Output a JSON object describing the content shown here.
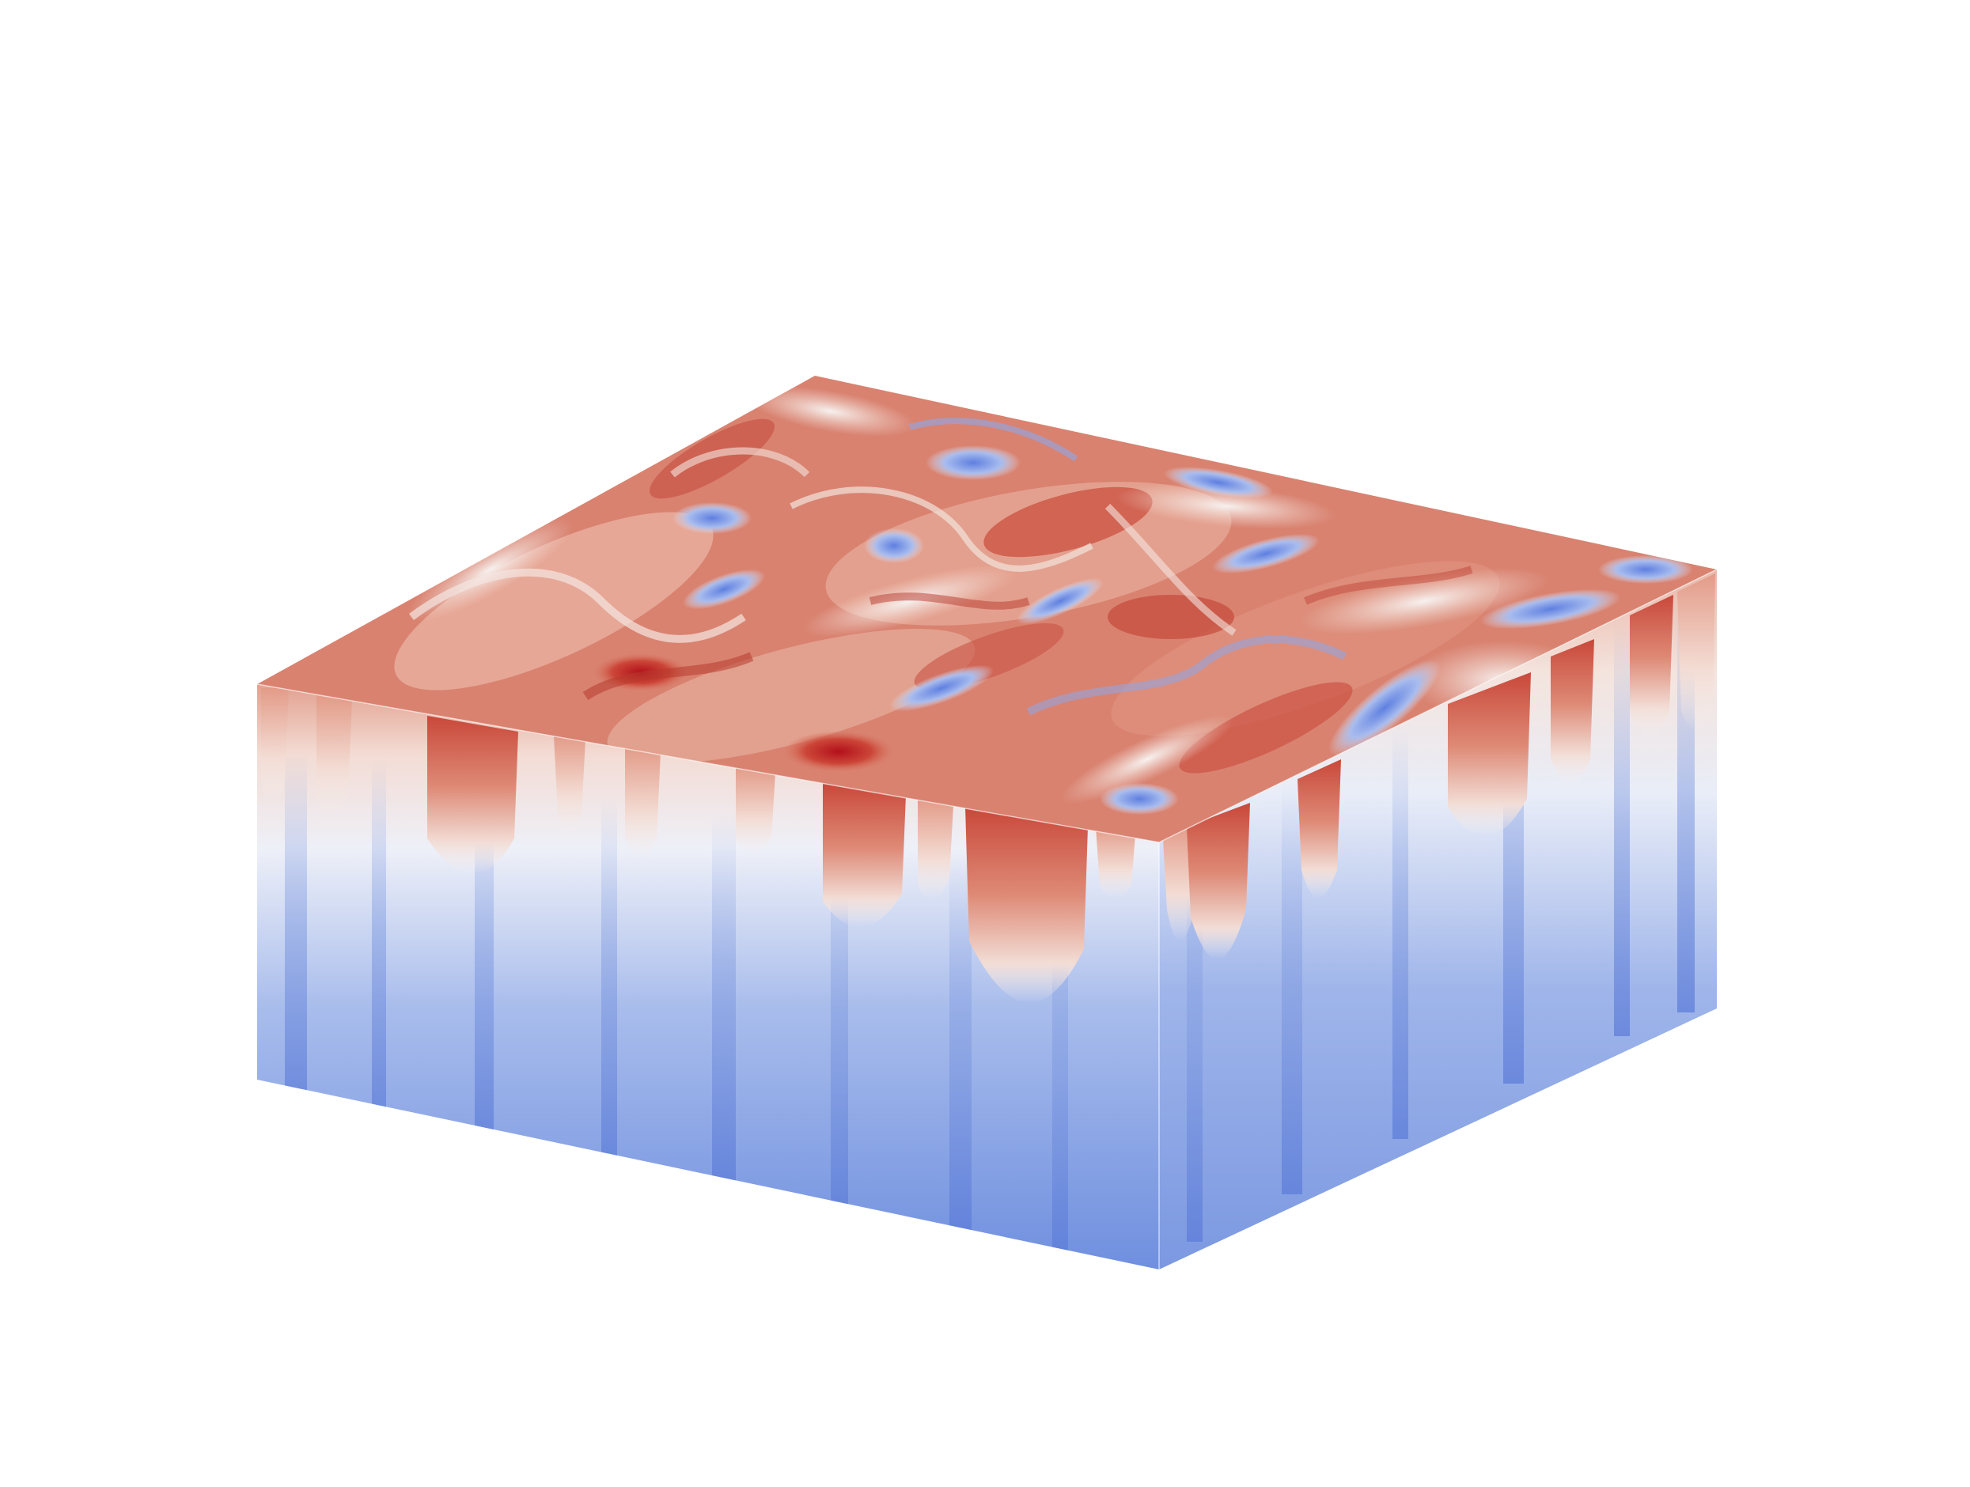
{
  "scene": {
    "subject": "turbulent-convection-cube",
    "colormap": {
      "name": "coolwarm",
      "cold": "#3b5bd6",
      "cool": "#8fa8e6",
      "neutral": "#f4f0ef",
      "warm": "#d96a55",
      "hot": "#b8141c"
    },
    "background": "#ffffff"
  }
}
